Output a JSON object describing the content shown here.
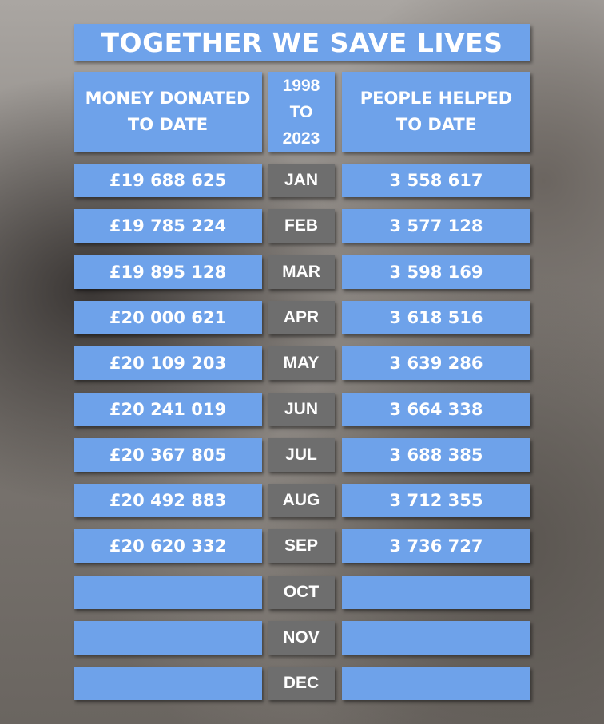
{
  "title": "TOGETHER WE SAVE LIVES",
  "header": {
    "money": "MONEY DONATED TO DATE",
    "years": "1998 TO 2023",
    "people": "PEOPLE HELPED TO DATE"
  },
  "rows": [
    {
      "month": "JAN",
      "money": "£19 688 625",
      "people": "3 558 617"
    },
    {
      "month": "FEB",
      "money": "£19 785 224",
      "people": "3 577 128"
    },
    {
      "month": "MAR",
      "money": "£19 895 128",
      "people": "3 598 169"
    },
    {
      "month": "APR",
      "money": "£20 000 621",
      "people": "3 618 516"
    },
    {
      "month": "MAY",
      "money": "£20 109 203",
      "people": "3 639 286"
    },
    {
      "month": "JUN",
      "money": "£20 241 019",
      "people": "3 664 338"
    },
    {
      "month": "JUL",
      "money": "£20 367 805",
      "people": "3 688 385"
    },
    {
      "month": "AUG",
      "money": "£20 492 883",
      "people": "3 712 355"
    },
    {
      "month": "SEP",
      "money": "£20 620 332",
      "people": "3 736 727"
    },
    {
      "month": "OCT"
    },
    {
      "month": "NOV"
    },
    {
      "month": "DEC"
    }
  ]
}
